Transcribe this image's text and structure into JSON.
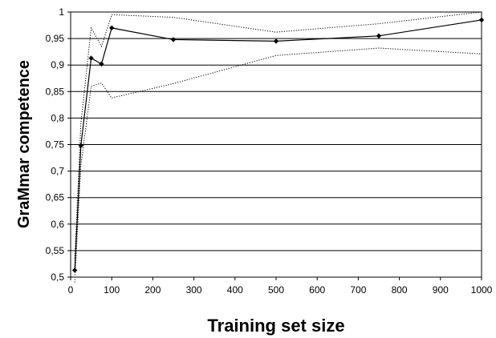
{
  "chart_data": {
    "type": "line",
    "title": "",
    "xlabel": "Training set size",
    "ylabel": "GraMmar competence",
    "xlim": [
      0,
      1000
    ],
    "ylim": [
      0.5,
      1.0
    ],
    "x_ticks": [
      0,
      100,
      200,
      300,
      400,
      500,
      600,
      700,
      800,
      900,
      1000
    ],
    "x_tick_labels": [
      "0",
      "100",
      "200",
      "300",
      "400",
      "500",
      "600",
      "700",
      "800",
      "900",
      "1000"
    ],
    "y_ticks": [
      0.5,
      0.55,
      0.6,
      0.65,
      0.7,
      0.75,
      0.8,
      0.85,
      0.9,
      0.95,
      1.0
    ],
    "y_tick_labels": [
      "0,5",
      "0,55",
      "0,6",
      "0,65",
      "0,7",
      "0,75",
      "0,8",
      "0,85",
      "0,9",
      "0,95",
      "1"
    ],
    "grid": "horizontal",
    "legend": "none",
    "series": [
      {
        "style": "solid-with-diamond-markers",
        "color": "#000000",
        "x": [
          10,
          25,
          50,
          75,
          100,
          250,
          500,
          750,
          1000
        ],
        "y": [
          0.513,
          0.748,
          0.913,
          0.902,
          0.97,
          0.948,
          0.945,
          0.955,
          0.985
        ]
      },
      {
        "style": "dotted-upper-bound",
        "color": "#000000",
        "x": [
          10,
          25,
          50,
          75,
          100,
          250,
          500,
          750,
          1000
        ],
        "y": [
          0.535,
          0.79,
          0.97,
          0.935,
          0.995,
          0.99,
          0.962,
          0.978,
          1.0
        ]
      },
      {
        "style": "dotted-lower-bound",
        "color": "#000000",
        "x": [
          10,
          25,
          50,
          75,
          100,
          250,
          500,
          750,
          1000
        ],
        "y": [
          0.49,
          0.71,
          0.86,
          0.866,
          0.838,
          0.865,
          0.918,
          0.932,
          0.921
        ]
      }
    ]
  }
}
